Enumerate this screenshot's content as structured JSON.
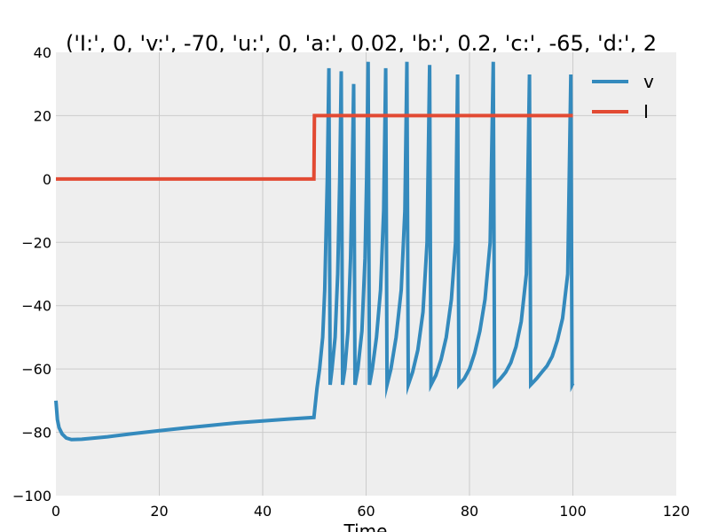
{
  "chart_data": {
    "type": "line",
    "title": "('I:', 0, 'v:', -70, 'u:', 0, 'a:', 0.02, 'b:', 0.2, 'c:', -65, 'd:', 2",
    "xlabel": "Time",
    "ylabel": "",
    "xlim": [
      0,
      120
    ],
    "ylim": [
      -100,
      40
    ],
    "x_ticks": [
      0,
      20,
      40,
      60,
      80,
      100,
      120
    ],
    "y_ticks": [
      -100,
      -80,
      -60,
      -40,
      -20,
      0,
      20,
      40
    ],
    "grid": true,
    "legend_position": "top-right",
    "series": [
      {
        "name": "v",
        "color": "#348abd",
        "points": [
          [
            0,
            -70
          ],
          [
            0.3,
            -76
          ],
          [
            0.6,
            -78.5
          ],
          [
            1.2,
            -80.5
          ],
          [
            2,
            -81.8
          ],
          [
            3,
            -82.3
          ],
          [
            5,
            -82.2
          ],
          [
            10,
            -81.4
          ],
          [
            15,
            -80.4
          ],
          [
            20,
            -79.5
          ],
          [
            25,
            -78.6
          ],
          [
            30,
            -77.8
          ],
          [
            35,
            -77
          ],
          [
            40,
            -76.4
          ],
          [
            45,
            -75.8
          ],
          [
            49.9,
            -75.3
          ],
          [
            50.5,
            -66
          ],
          [
            51,
            -60
          ],
          [
            51.6,
            -50
          ],
          [
            52,
            -35
          ],
          [
            52.5,
            0
          ],
          [
            52.8,
            35
          ],
          [
            53.05,
            -65
          ],
          [
            53.4,
            -60
          ],
          [
            54,
            -50
          ],
          [
            54.5,
            -30
          ],
          [
            54.9,
            0
          ],
          [
            55.2,
            34
          ],
          [
            55.45,
            -65
          ],
          [
            55.9,
            -60
          ],
          [
            56.5,
            -48
          ],
          [
            57,
            -25
          ],
          [
            57.3,
            0
          ],
          [
            57.6,
            30
          ],
          [
            57.85,
            -65
          ],
          [
            58.4,
            -60
          ],
          [
            59.2,
            -48
          ],
          [
            59.8,
            -25
          ],
          [
            60.1,
            0
          ],
          [
            60.4,
            37
          ],
          [
            60.65,
            -65
          ],
          [
            61.2,
            -60
          ],
          [
            62,
            -50
          ],
          [
            62.8,
            -35
          ],
          [
            63.4,
            -10
          ],
          [
            63.8,
            35
          ],
          [
            64.05,
            -65
          ],
          [
            64.8,
            -60
          ],
          [
            65.8,
            -50
          ],
          [
            66.8,
            -35
          ],
          [
            67.5,
            -10
          ],
          [
            67.9,
            37
          ],
          [
            68.15,
            -65
          ],
          [
            69,
            -61
          ],
          [
            70,
            -54
          ],
          [
            71,
            -42
          ],
          [
            71.8,
            -20
          ],
          [
            72.3,
            36
          ],
          [
            72.55,
            -65
          ],
          [
            73.5,
            -62
          ],
          [
            74.5,
            -57
          ],
          [
            75.5,
            -50
          ],
          [
            76.5,
            -38
          ],
          [
            77.3,
            -20
          ],
          [
            77.7,
            33
          ],
          [
            77.95,
            -65
          ],
          [
            79,
            -63
          ],
          [
            80,
            -60
          ],
          [
            81,
            -55
          ],
          [
            82,
            -48
          ],
          [
            83,
            -38
          ],
          [
            84,
            -20
          ],
          [
            84.6,
            37
          ],
          [
            84.85,
            -65
          ],
          [
            86,
            -63
          ],
          [
            87,
            -61
          ],
          [
            88,
            -58
          ],
          [
            89,
            -53
          ],
          [
            90,
            -45
          ],
          [
            91,
            -30
          ],
          [
            91.6,
            33
          ],
          [
            91.85,
            -65
          ],
          [
            93,
            -63
          ],
          [
            94,
            -61
          ],
          [
            95,
            -59
          ],
          [
            96,
            -56
          ],
          [
            97,
            -51
          ],
          [
            98,
            -44
          ],
          [
            99,
            -30
          ],
          [
            99.6,
            33
          ],
          [
            99.85,
            -65
          ],
          [
            100,
            -64.5
          ]
        ]
      },
      {
        "name": "I",
        "color": "#e24a33",
        "points": [
          [
            0,
            0
          ],
          [
            49.9,
            0
          ],
          [
            50,
            20
          ],
          [
            100,
            20
          ]
        ]
      }
    ]
  }
}
